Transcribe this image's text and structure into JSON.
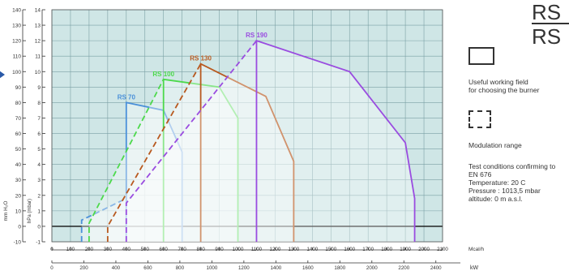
{
  "chart_data": {
    "type": "line",
    "axes": {
      "left_outer": {
        "label": "mm H₂O",
        "ticks": [
          -10,
          0,
          10,
          20,
          30,
          40,
          50,
          60,
          70,
          80,
          90,
          100,
          110,
          120,
          130,
          140
        ]
      },
      "left_inner": {
        "label": "hPa (mbar)",
        "ticks": [
          -1,
          0,
          1,
          2,
          3,
          4,
          5,
          6,
          7,
          8,
          9,
          10,
          11,
          12,
          13,
          14
        ]
      },
      "x_mcal": {
        "label": "Mcal/h",
        "ticks": [
          0,
          100,
          200,
          300,
          400,
          500,
          600,
          700,
          800,
          900,
          1000,
          1100,
          1200,
          1300,
          1400,
          1500,
          1600,
          1700,
          1800,
          1900,
          2000,
          2100
        ]
      },
      "x_kw": {
        "label": "kW",
        "ticks": [
          0,
          200,
          400,
          600,
          800,
          1000,
          1200,
          1400,
          1600,
          1800,
          2000,
          2200,
          2400
        ]
      }
    },
    "xlim": [
      0,
      2100
    ],
    "ylim": [
      -1,
      14
    ],
    "grid": true,
    "series": [
      {
        "name": "RS 70",
        "color": "#4a90d9",
        "modulation_x": [
          160,
          160,
          400
        ],
        "modulation_y": [
          -1,
          0.4,
          1.8
        ],
        "working_x": [
          400,
          400,
          600,
          700,
          700
        ],
        "working_y": [
          -1,
          8.0,
          7.5,
          4.8,
          -1
        ]
      },
      {
        "name": "RS 100",
        "color": "#4cd94c",
        "modulation_x": [
          200,
          200,
          600
        ],
        "modulation_y": [
          -1,
          0.2,
          9.5
        ],
        "working_x": [
          600,
          600,
          900,
          1000,
          1000
        ],
        "working_y": [
          -1,
          9.5,
          9.0,
          7.0,
          -1
        ]
      },
      {
        "name": "RS 130",
        "color": "#b8591f",
        "modulation_x": [
          300,
          300,
          800
        ],
        "modulation_y": [
          -1,
          0,
          10.5
        ],
        "working_x": [
          800,
          800,
          1150,
          1300,
          1300
        ],
        "working_y": [
          -1,
          10.5,
          8.4,
          4.2,
          -1
        ]
      },
      {
        "name": "RS 190",
        "color": "#9a4ce0",
        "modulation_x": [
          400,
          400,
          1100
        ],
        "modulation_y": [
          -1,
          1.5,
          12.0
        ],
        "working_x": [
          1100,
          1100,
          1600,
          1900,
          1950,
          1950
        ],
        "working_y": [
          -1,
          12.0,
          10.0,
          5.4,
          1.8,
          -1
        ]
      }
    ]
  },
  "legend": {
    "working_field": "Useful working field\nfor choosing the burner",
    "modulation": "Modulation range",
    "test_conditions": "Test conditions confirming to\nEN 676\nTemperature: 20 C\nPressure : 1013,5 mbar\naltitude: 0 m a.s.l."
  },
  "corner_text": [
    "RS",
    "RS"
  ],
  "style": {
    "plot_bg": "#cfe6e6",
    "grid": "#7aa0a4"
  }
}
